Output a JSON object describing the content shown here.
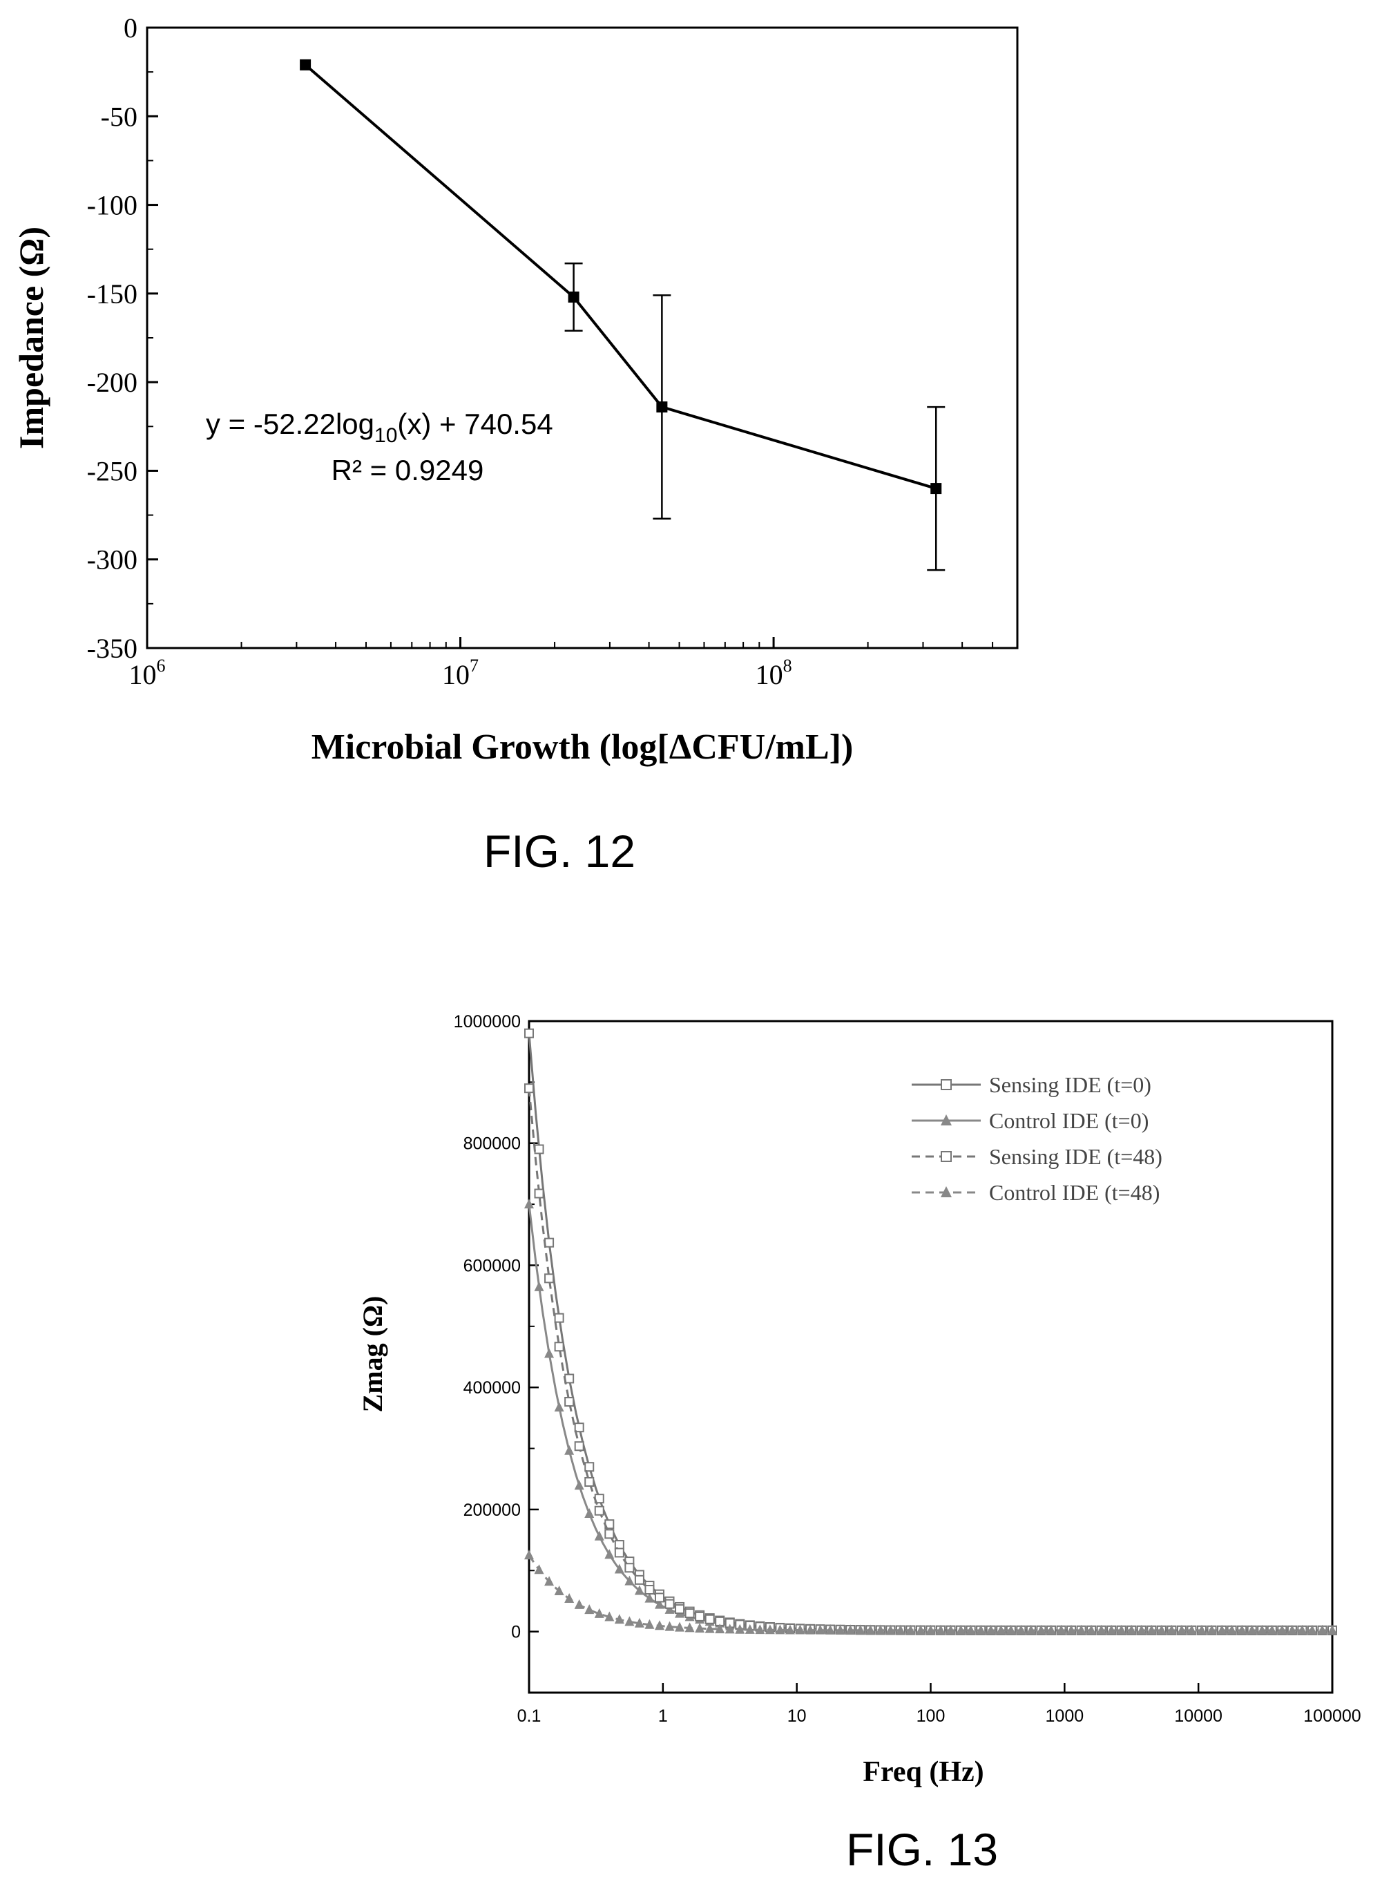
{
  "figures": [
    {
      "caption": "FIG. 12"
    },
    {
      "caption": "FIG. 13"
    }
  ],
  "chart_data": [
    {
      "type": "line",
      "xscale": "log",
      "xlabel": "Microbial Growth (log[ΔCFU/mL])",
      "ylabel": "Impedance (Ω)",
      "xlim": [
        1000000,
        600000000
      ],
      "ylim": [
        -350,
        0
      ],
      "x_ticks": [
        {
          "value": 1000000,
          "base": "10",
          "exp": "6"
        },
        {
          "value": 10000000,
          "base": "10",
          "exp": "7"
        },
        {
          "value": 100000000,
          "base": "10",
          "exp": "8"
        }
      ],
      "y_ticks": [
        0,
        -50,
        -100,
        -150,
        -200,
        -250,
        -300,
        -350
      ],
      "grid": false,
      "series": [
        {
          "x": [
            3200000,
            23000000,
            44000000,
            330000000
          ],
          "y": [
            -21,
            -152,
            -214,
            -260
          ],
          "error": [
            0,
            19,
            63,
            46
          ],
          "color": "#000000"
        }
      ],
      "annotation": {
        "equation_prefix": "y = -52.22log",
        "equation_sub": "10",
        "equation_suffix": "(x) + 740.54",
        "r_squared": "R² = 0.9249"
      }
    },
    {
      "type": "line",
      "xscale": "log",
      "xlabel": "Freq (Hz)",
      "ylabel": "Zmag (Ω)",
      "xlim": [
        0.1,
        100000
      ],
      "ylim": [
        -100000,
        1000000
      ],
      "x_ticks": [
        "0.1",
        "1",
        "10",
        "100",
        "1000",
        "10000",
        "100000"
      ],
      "y_ticks": [
        "1000000",
        "800000",
        "600000",
        "400000",
        "200000",
        "0"
      ],
      "grid": false,
      "legend_position": "top-right",
      "series": [
        {
          "name": "Sensing IDE (t=0)",
          "marker": "open-square",
          "dash": "solid",
          "color": "#777777",
          "z0": 980000,
          "z_inf": 2000
        },
        {
          "name": "Control IDE (t=0)",
          "marker": "filled-triangle",
          "dash": "solid",
          "color": "#888888",
          "z0": 700000,
          "z_inf": 2000
        },
        {
          "name": "Sensing IDE (t=48)",
          "marker": "open-square",
          "dash": "dashed",
          "color": "#777777",
          "z0": 890000,
          "z_inf": 2000
        },
        {
          "name": "Control IDE (t=48)",
          "marker": "filled-triangle",
          "dash": "dashed",
          "color": "#888888",
          "z0": 125000,
          "z_inf": 2000
        }
      ]
    }
  ]
}
